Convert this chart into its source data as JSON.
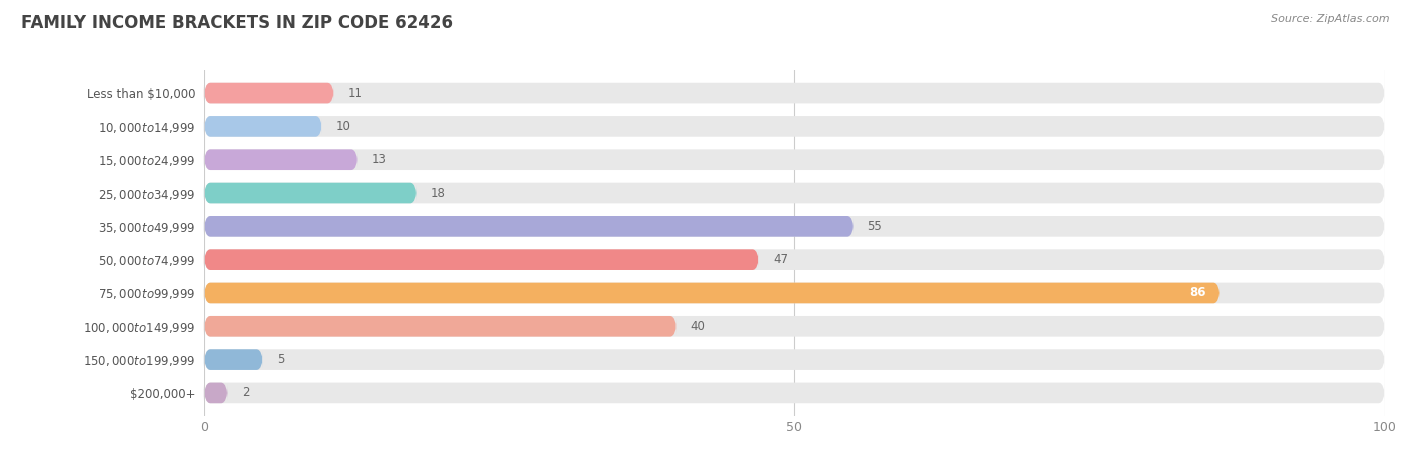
{
  "title": "Family Income Brackets in Zip Code 62426",
  "source": "Source: ZipAtlas.com",
  "categories": [
    "Less than $10,000",
    "$10,000 to $14,999",
    "$15,000 to $24,999",
    "$25,000 to $34,999",
    "$35,000 to $49,999",
    "$50,000 to $74,999",
    "$75,000 to $99,999",
    "$100,000 to $149,999",
    "$150,000 to $199,999",
    "$200,000+"
  ],
  "values": [
    11,
    10,
    13,
    18,
    55,
    47,
    86,
    40,
    5,
    2
  ],
  "bar_colors": [
    "#F4A0A0",
    "#A8C8E8",
    "#C8A8D8",
    "#7ECFC8",
    "#A8A8D8",
    "#F08888",
    "#F4B060",
    "#F0A898",
    "#90B8D8",
    "#C8A8C8"
  ],
  "xlim": [
    0,
    100
  ],
  "bar_background_color": "#e8e8e8",
  "title_color": "#444444",
  "label_color": "#555555",
  "value_color_inside": "#ffffff",
  "value_color_outside": "#666666",
  "tick_color": "#888888",
  "bar_height": 0.62
}
